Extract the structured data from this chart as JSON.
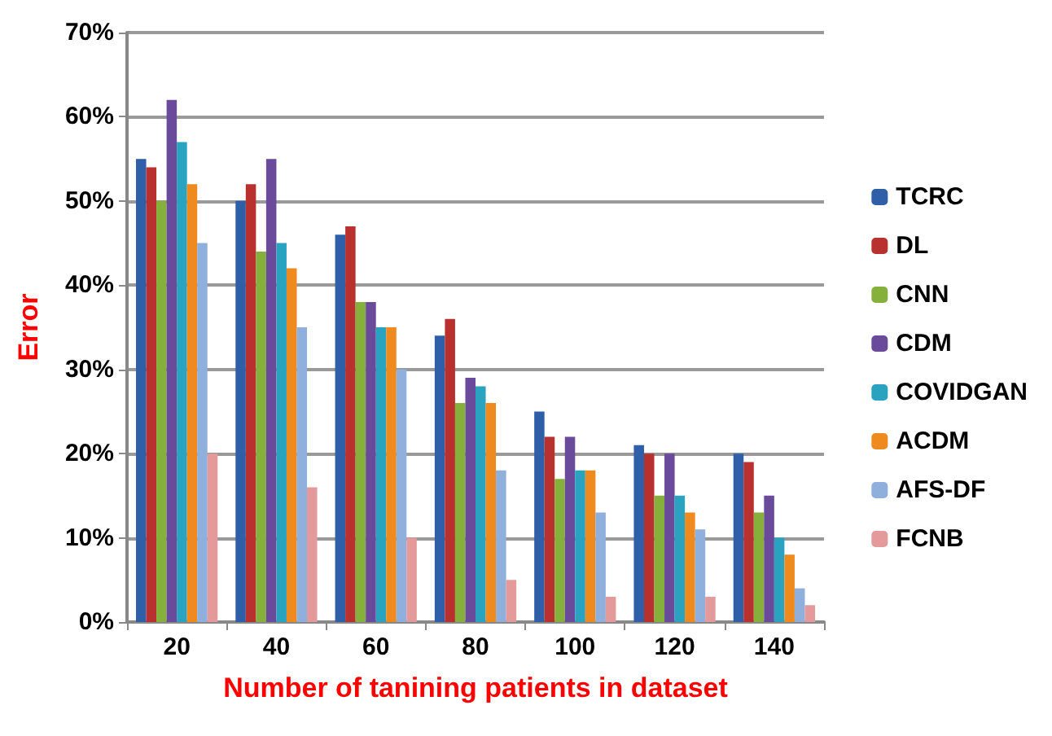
{
  "chart_data": {
    "type": "bar",
    "xlabel": "Number of tanining patients in dataset",
    "ylabel": "Error",
    "categories": [
      "20",
      "40",
      "60",
      "80",
      "100",
      "120",
      "140"
    ],
    "series": [
      {
        "name": "TCRC",
        "color": "#2e5fa8",
        "values": [
          55,
          50,
          46,
          34,
          25,
          21,
          20
        ]
      },
      {
        "name": "DL",
        "color": "#b8312f",
        "values": [
          54,
          52,
          47,
          36,
          22,
          20,
          19
        ]
      },
      {
        "name": "CNN",
        "color": "#86b03c",
        "values": [
          50,
          44,
          38,
          26,
          17,
          15,
          13
        ]
      },
      {
        "name": "CDM",
        "color": "#6a4a9a",
        "values": [
          62,
          55,
          38,
          29,
          22,
          20,
          15
        ]
      },
      {
        "name": "COVIDGAN",
        "color": "#2aa3c0",
        "values": [
          57,
          45,
          35,
          28,
          18,
          15,
          10
        ]
      },
      {
        "name": "ACDM",
        "color": "#ee8a1e",
        "values": [
          52,
          42,
          35,
          26,
          18,
          13,
          8
        ]
      },
      {
        "name": "AFS-DF",
        "color": "#8fb0dc",
        "values": [
          45,
          35,
          30,
          18,
          13,
          11,
          4
        ]
      },
      {
        "name": "FCNB",
        "color": "#e49a9a",
        "values": [
          20,
          16,
          10,
          5,
          3,
          3,
          2
        ]
      }
    ],
    "ylim": [
      0,
      70
    ],
    "yticks": [
      {
        "value": 0,
        "label": "0%"
      },
      {
        "value": 10,
        "label": "10%"
      },
      {
        "value": 20,
        "label": "20%"
      },
      {
        "value": 30,
        "label": "30%"
      },
      {
        "value": 40,
        "label": "40%"
      },
      {
        "value": 50,
        "label": "50%"
      },
      {
        "value": 60,
        "label": "60%"
      },
      {
        "value": 70,
        "label": "70%"
      }
    ],
    "grid": "y",
    "legend": "right"
  }
}
